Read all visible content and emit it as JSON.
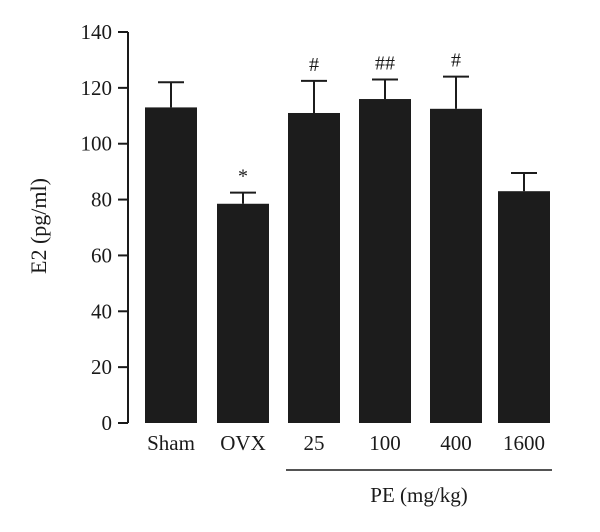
{
  "chart_data": {
    "type": "bar",
    "ylabel": "E2 (pg/ml)",
    "xlabel": "",
    "ylim": [
      0,
      140
    ],
    "yticks": [
      0,
      20,
      40,
      60,
      80,
      100,
      120,
      140
    ],
    "categories": [
      "Sham",
      "OVX",
      "25",
      "100",
      "400",
      "1600"
    ],
    "values": [
      113,
      78.5,
      111,
      116,
      112.5,
      83
    ],
    "errors": [
      9,
      4,
      11.5,
      7,
      11.5,
      6.5
    ],
    "significance": [
      "",
      "*",
      "#",
      "##",
      "#",
      ""
    ],
    "group_label": {
      "text": "PE (mg/kg)",
      "categories": [
        "25",
        "100",
        "400",
        "1600"
      ]
    },
    "grid": false,
    "bar_color": "#1c1c1c"
  }
}
